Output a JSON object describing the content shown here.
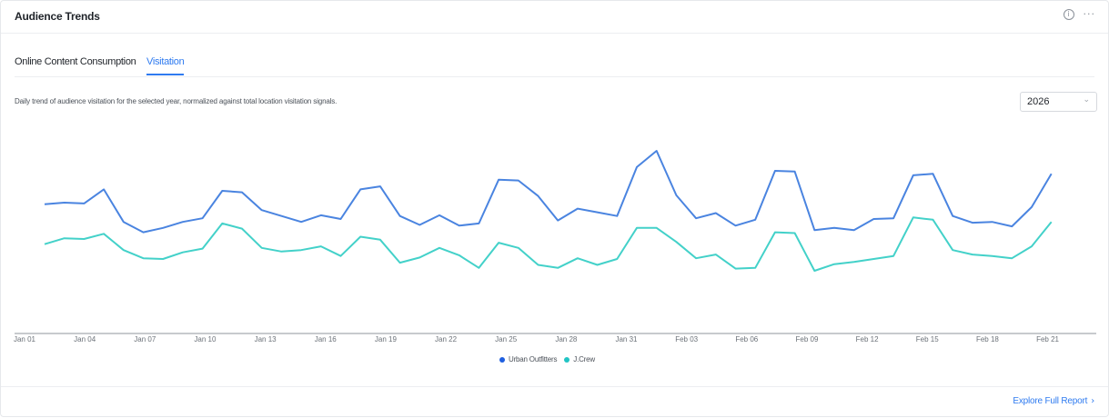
{
  "card": {
    "title": "Audience Trends",
    "icons": {
      "info": "info-icon",
      "more": "more-horizontal-icon"
    }
  },
  "tabs": [
    {
      "label": "Online Content Consumption",
      "active": false
    },
    {
      "label": "Visitation",
      "active": true
    }
  ],
  "description": "Daily trend of audience visitation for the selected year, normalized against total location visitation signals.",
  "year_select": {
    "value": "2026",
    "icon": "chevron-down-icon"
  },
  "footer": {
    "link_label": "Explore Full Report",
    "icon": "chevron-right-icon"
  },
  "colors": {
    "accent": "#2f7bf0",
    "series1": "#4a84e0",
    "series2": "#43d1c9",
    "legend1": "#1f5fe0",
    "legend2": "#21c4c4"
  },
  "chart_data": {
    "type": "line",
    "x_ticks": [
      "Jan 01",
      "Jan 04",
      "Jan 07",
      "Jan 10",
      "Jan 13",
      "Jan 16",
      "Jan 19",
      "Jan 22",
      "Jan 25",
      "Jan 28",
      "Jan 31",
      "Feb 03",
      "Feb 06",
      "Feb 09",
      "Feb 12",
      "Feb 15",
      "Feb 18",
      "Feb 21"
    ],
    "x_start": "Jan 01",
    "grid": false,
    "legend_position": "bottom-center",
    "ylim": [
      0,
      100
    ],
    "series": [
      {
        "name": "Urban Outfitters",
        "values": [
          64,
          65,
          64.5,
          74,
          52,
          45,
          48,
          52,
          54.5,
          73,
          72,
          60,
          56,
          52,
          56.5,
          54,
          74,
          76,
          56,
          50,
          56.5,
          49.5,
          51,
          80.5,
          80,
          69.5,
          53,
          61,
          58.5,
          56,
          89,
          100,
          70,
          54.5,
          58,
          49.5,
          53.5,
          86.5,
          86,
          46.5,
          48,
          46.5,
          54,
          54.5,
          83.5,
          84.5,
          56,
          51.5,
          52,
          49,
          62,
          84.5
        ]
      },
      {
        "name": "J.Crew",
        "values": [
          37,
          41,
          40.5,
          44,
          33,
          27.5,
          27,
          31.5,
          34,
          51,
          47.5,
          34.5,
          32,
          33,
          35.5,
          29,
          42,
          40,
          24.5,
          28,
          34.5,
          29.5,
          21,
          38,
          34.5,
          23,
          21,
          27.5,
          23,
          27,
          48,
          48,
          38.5,
          27.5,
          30,
          20.5,
          21,
          45,
          44.5,
          19,
          23.5,
          25,
          27,
          29,
          55,
          53.5,
          33,
          30,
          29,
          27.5,
          35.5,
          52
        ]
      }
    ]
  }
}
